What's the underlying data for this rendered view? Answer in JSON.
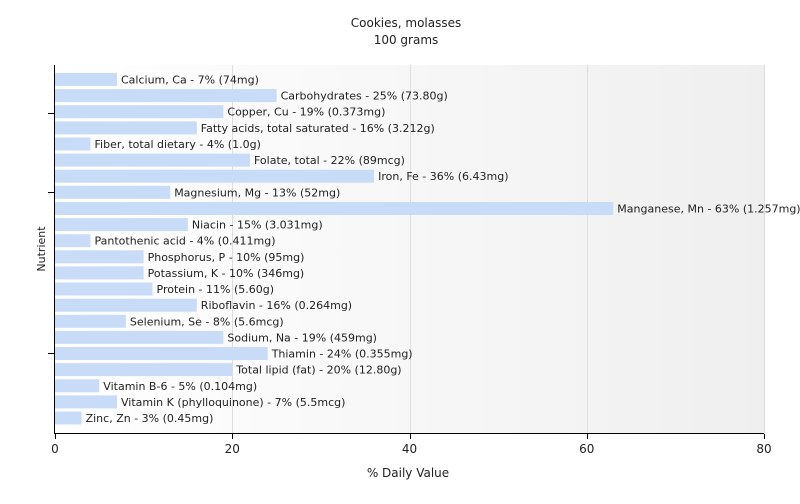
{
  "chart_data": {
    "type": "bar",
    "orientation": "horizontal",
    "title": "Cookies, molasses",
    "subtitle": "100 grams",
    "xlabel": "% Daily Value",
    "ylabel": "Nutrient",
    "xlim": [
      0,
      80
    ],
    "x_ticks": [
      "0",
      "20",
      "40",
      "60",
      "80"
    ],
    "grid": "vertical",
    "bar_color": "#c8dcf8",
    "categories": [
      "Calcium, Ca",
      "Carbohydrates",
      "Copper, Cu",
      "Fatty acids, total saturated",
      "Fiber, total dietary",
      "Folate, total",
      "Iron, Fe",
      "Magnesium, Mg",
      "Manganese, Mn",
      "Niacin",
      "Pantothenic acid",
      "Phosphorus, P",
      "Potassium, K",
      "Protein",
      "Riboflavin",
      "Selenium, Se",
      "Sodium, Na",
      "Thiamin",
      "Total lipid (fat)",
      "Vitamin B-6",
      "Vitamin K (phylloquinone)",
      "Zinc, Zn"
    ],
    "values": [
      7,
      25,
      19,
      16,
      4,
      22,
      36,
      13,
      63,
      15,
      4,
      10,
      10,
      11,
      16,
      8,
      19,
      24,
      20,
      5,
      7,
      3
    ],
    "labels": [
      "Calcium, Ca - 7% (74mg)",
      "Carbohydrates - 25% (73.80g)",
      "Copper, Cu - 19% (0.373mg)",
      "Fatty acids, total saturated - 16% (3.212g)",
      "Fiber, total dietary - 4% (1.0g)",
      "Folate, total - 22% (89mcg)",
      "Iron, Fe - 36% (6.43mg)",
      "Magnesium, Mg - 13% (52mg)",
      "Manganese, Mn - 63% (1.257mg)",
      "Niacin - 15% (3.031mg)",
      "Pantothenic acid - 4% (0.411mg)",
      "Phosphorus, P - 10% (95mg)",
      "Potassium, K - 10% (346mg)",
      "Protein - 11% (5.60g)",
      "Riboflavin - 16% (0.264mg)",
      "Selenium, Se - 8% (5.6mcg)",
      "Sodium, Na - 19% (459mg)",
      "Thiamin - 24% (0.355mg)",
      "Total lipid (fat) - 20% (12.80g)",
      "Vitamin B-6 - 5% (0.104mg)",
      "Vitamin K (phylloquinone) - 7% (5.5mcg)",
      "Zinc, Zn - 3% (0.45mg)"
    ]
  }
}
